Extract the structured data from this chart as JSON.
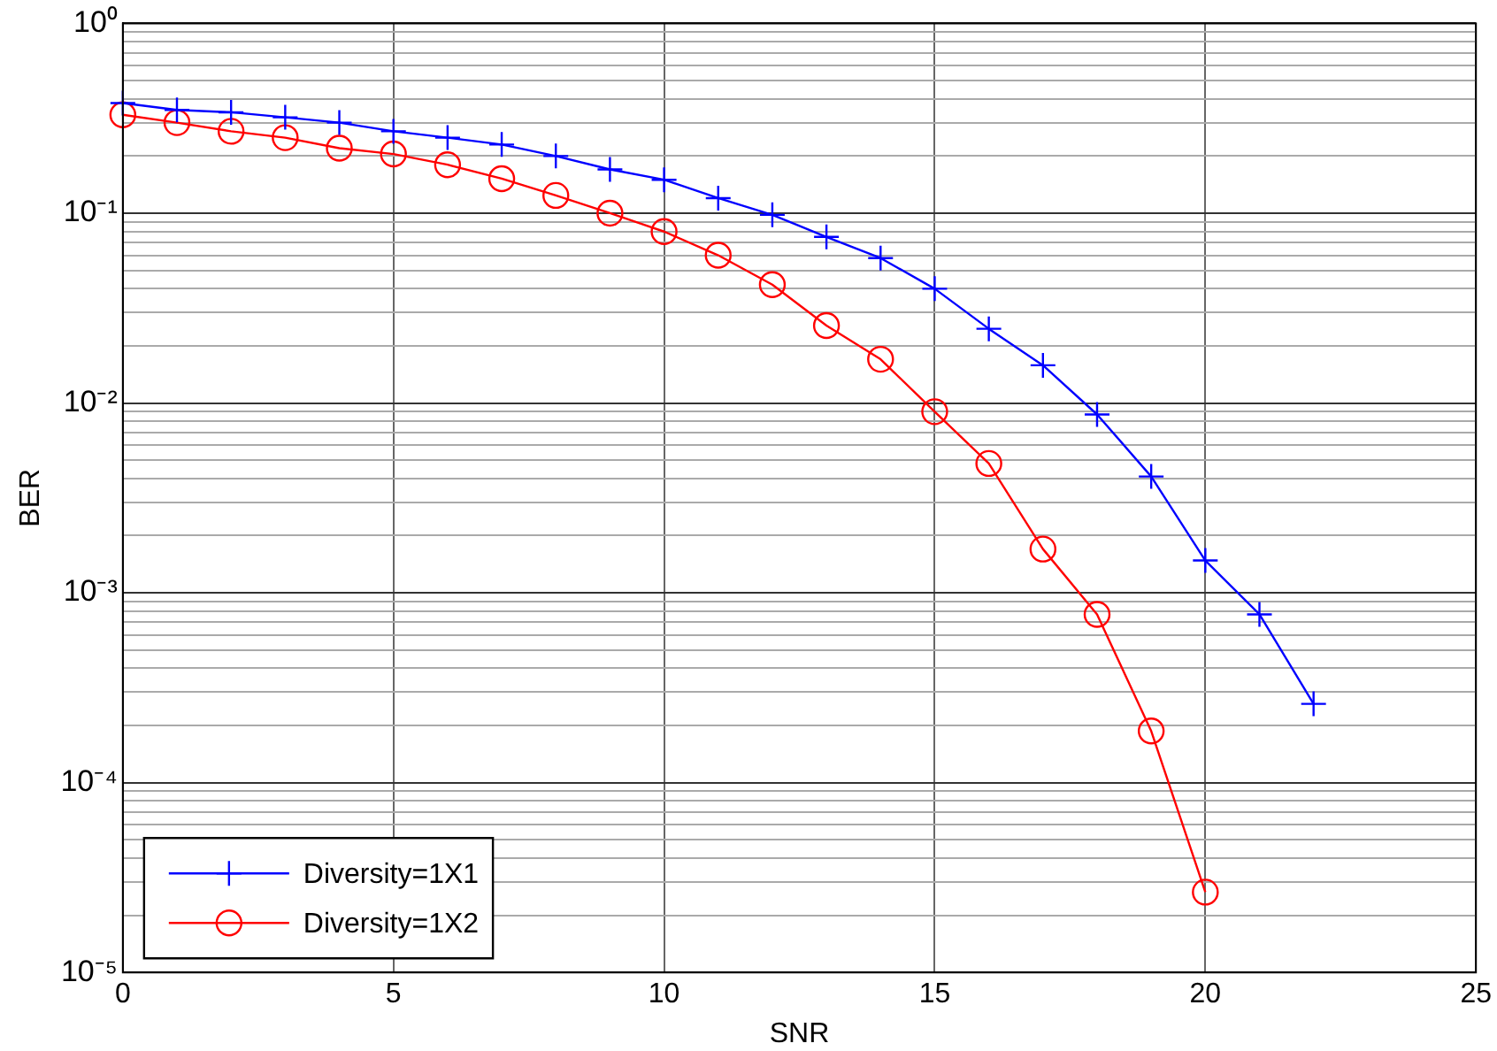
{
  "chart_data": {
    "type": "line",
    "xlabel": "SNR",
    "ylabel": "BER",
    "log": "y",
    "grid": true,
    "legend": "bottom left",
    "line_style": "solid",
    "x": [
      0,
      1,
      2,
      3,
      4,
      5,
      6,
      7,
      8,
      9,
      10,
      11,
      12,
      13,
      14,
      15,
      16,
      17,
      18,
      19,
      20,
      21,
      22
    ],
    "xlim": [
      0,
      25
    ],
    "xticks": [
      0,
      5,
      10,
      15,
      20,
      25
    ],
    "ylim": [
      1e-05,
      1
    ],
    "yticks": [
      {
        "value": 1e-05,
        "label": "10⁻⁵"
      },
      {
        "value": 2e-05,
        "label": null
      },
      {
        "value": 3e-05,
        "label": null
      },
      {
        "value": 4e-05,
        "label": null
      },
      {
        "value": 5e-05,
        "label": null
      },
      {
        "value": 6e-05,
        "label": null
      },
      {
        "value": 7e-05,
        "label": null
      },
      {
        "value": 8e-05,
        "label": null
      },
      {
        "value": 9e-05,
        "label": null
      },
      {
        "value": 0.0001,
        "label": "10⁻⁴"
      },
      {
        "value": 0.0002,
        "label": null
      },
      {
        "value": 0.0003,
        "label": null
      },
      {
        "value": 0.0004,
        "label": null
      },
      {
        "value": 0.0005,
        "label": null
      },
      {
        "value": 0.0006,
        "label": null
      },
      {
        "value": 0.0007,
        "label": null
      },
      {
        "value": 0.0008,
        "label": null
      },
      {
        "value": 0.0009,
        "label": null
      },
      {
        "value": 0.001,
        "label": "10⁻³"
      },
      {
        "value": 0.002,
        "label": null
      },
      {
        "value": 0.003,
        "label": null
      },
      {
        "value": 0.004,
        "label": null
      },
      {
        "value": 0.005,
        "label": null
      },
      {
        "value": 0.006,
        "label": null
      },
      {
        "value": 0.007,
        "label": null
      },
      {
        "value": 0.008,
        "label": null
      },
      {
        "value": 0.009,
        "label": null
      },
      {
        "value": 0.01,
        "label": "10⁻²"
      },
      {
        "value": 0.02,
        "label": null
      },
      {
        "value": 0.03,
        "label": null
      },
      {
        "value": 0.04,
        "label": null
      },
      {
        "value": 0.05,
        "label": null
      },
      {
        "value": 0.06,
        "label": null
      },
      {
        "value": 0.07,
        "label": null
      },
      {
        "value": 0.08,
        "label": null
      },
      {
        "value": 0.09,
        "label": null
      },
      {
        "value": 0.1,
        "label": "10⁻¹"
      },
      {
        "value": 0.2,
        "label": null
      },
      {
        "value": 0.3,
        "label": null
      },
      {
        "value": 0.4,
        "label": null
      },
      {
        "value": 0.5,
        "label": null
      },
      {
        "value": 0.6,
        "label": null
      },
      {
        "value": 0.7,
        "label": null
      },
      {
        "value": 0.8,
        "label": null
      },
      {
        "value": 0.9,
        "label": null
      },
      {
        "value": 1,
        "label": "10⁰"
      }
    ],
    "series": [
      {
        "name": "Diversity=1X1",
        "color": "#0000ff",
        "marker": "cross",
        "values": [
          0.38,
          0.35,
          0.34,
          0.32,
          0.3,
          0.27,
          0.25,
          0.23,
          0.2,
          0.17,
          0.15,
          0.12,
          0.098,
          0.075,
          0.058,
          0.04,
          0.0246,
          0.0158,
          0.0087,
          0.0041,
          0.00148,
          0.00077,
          0.00026
        ]
      },
      {
        "name": "Diversity=1X2",
        "color": "#ff0000",
        "marker": "circle",
        "values": [
          0.33,
          0.3,
          0.27,
          0.25,
          0.22,
          0.205,
          0.18,
          0.152,
          0.124,
          0.1,
          0.08,
          0.06,
          0.042,
          0.0256,
          0.017,
          0.009,
          0.0048,
          0.0017,
          0.00077,
          0.000187,
          2.65e-05,
          null,
          null
        ]
      }
    ]
  }
}
